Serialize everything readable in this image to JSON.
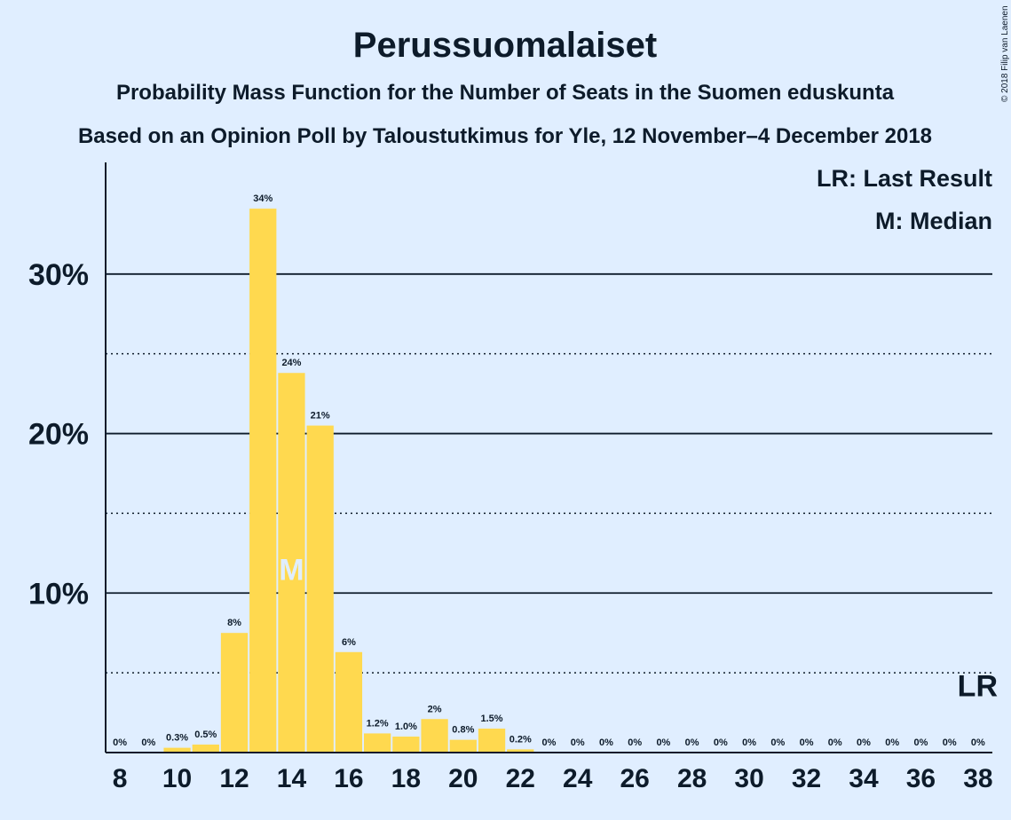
{
  "chart_data": {
    "type": "bar",
    "title": "Perussuomalaiset",
    "subtitle1": "Probability Mass Function for the Number of Seats in the Suomen eduskunta",
    "subtitle2": "Based on an Opinion Poll by Taloustutkimus for Yle, 12 November–4 December 2018",
    "copyright": "© 2018 Filip van Laenen",
    "x": [
      8,
      9,
      10,
      11,
      12,
      13,
      14,
      15,
      16,
      17,
      18,
      19,
      20,
      21,
      22,
      23,
      24,
      25,
      26,
      27,
      28,
      29,
      30,
      31,
      32,
      33,
      34,
      35,
      36,
      37,
      38
    ],
    "values": [
      0,
      0,
      0.3,
      0.5,
      7.5,
      34.1,
      23.8,
      20.5,
      6.3,
      1.2,
      1.0,
      2.1,
      0.8,
      1.5,
      0.2,
      0,
      0,
      0,
      0,
      0,
      0,
      0,
      0,
      0,
      0,
      0,
      0,
      0,
      0,
      0,
      0
    ],
    "labels": [
      "0%",
      "0%",
      "0.3%",
      "0.5%",
      "8%",
      "34%",
      "24%",
      "21%",
      "6%",
      "1.2%",
      "1.0%",
      "2%",
      "0.8%",
      "1.5%",
      "0.2%",
      "0%",
      "0%",
      "0%",
      "0%",
      "0%",
      "0%",
      "0%",
      "0%",
      "0%",
      "0%",
      "0%",
      "0%",
      "0%",
      "0%",
      "0%",
      "0%"
    ],
    "xticks": [
      8,
      10,
      12,
      14,
      16,
      18,
      20,
      22,
      24,
      26,
      28,
      30,
      32,
      34,
      36,
      38
    ],
    "yticks": [
      {
        "value": 10,
        "label": "10%"
      },
      {
        "value": 20,
        "label": "20%"
      },
      {
        "value": 30,
        "label": "30%"
      }
    ],
    "minor_gridlines": [
      5,
      15,
      25
    ],
    "ylim": [
      0,
      37
    ],
    "xlim": [
      7.5,
      38.5
    ],
    "median": {
      "x": 14,
      "label": "M",
      "y_position": 11.5
    },
    "last_result": {
      "x": 38,
      "label": "LR",
      "y_position": 4.2
    },
    "legend": {
      "placement": "top-right",
      "lines": [
        "LR: Last Result",
        "M: Median"
      ]
    },
    "colors": {
      "bar": "#ffd94f",
      "background": "#e0eeff",
      "text": "#0d1b2a",
      "median_text": "#e0eeff"
    },
    "grid": true
  }
}
